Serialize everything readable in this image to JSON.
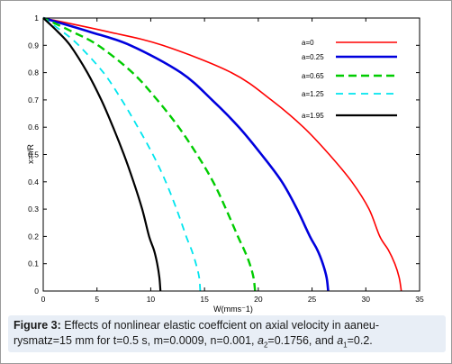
{
  "caption": {
    "label": "Figure 3:",
    "line1": "Effects of nonlinear elastic coeffcient on axial velocity in aaneu-",
    "line2_a": "rysmatz=15 mm for t=0.5 s, m=0.0009, n=0.001, ",
    "a2_sym": "a",
    "a2_sub": "2",
    "a2_val": "=0.1756, and ",
    "a1_sym": "a",
    "a1_sub": "1",
    "a1_val": "=0.2."
  },
  "chart_data": {
    "type": "line",
    "xlabel": "W(mms⁻1)",
    "ylabel": "x=r/R",
    "xlim": [
      0,
      35
    ],
    "ylim": [
      0,
      1
    ],
    "xticks": [
      0,
      5,
      10,
      15,
      20,
      25,
      30,
      35
    ],
    "yticks": [
      0,
      0.1,
      0.2,
      0.3,
      0.4,
      0.5,
      0.6,
      0.7,
      0.8,
      0.9,
      1
    ],
    "legend_position": "top-right",
    "grid": false,
    "series": [
      {
        "name": "a=0",
        "color": "#ff0000",
        "style": "solid",
        "width": 1.6,
        "x_at_center": 33.3,
        "points": [
          [
            33.3,
            0
          ],
          [
            33.1,
            0.05
          ],
          [
            32.7,
            0.1
          ],
          [
            32.1,
            0.15
          ],
          [
            31.3,
            0.2
          ],
          [
            30.3,
            0.3
          ],
          [
            28.7,
            0.4
          ],
          [
            26.6,
            0.5
          ],
          [
            24.2,
            0.6
          ],
          [
            21.2,
            0.7
          ],
          [
            17.5,
            0.8
          ],
          [
            11.1,
            0.9
          ],
          [
            6.0,
            0.95
          ],
          [
            0,
            1
          ]
        ]
      },
      {
        "name": "a=0.25",
        "color": "#0000dd",
        "style": "solid",
        "width": 2.6,
        "x_at_center": 26.5,
        "points": [
          [
            26.5,
            0
          ],
          [
            26.35,
            0.05
          ],
          [
            26.0,
            0.1
          ],
          [
            25.5,
            0.15
          ],
          [
            24.8,
            0.2
          ],
          [
            23.6,
            0.3
          ],
          [
            22.2,
            0.4
          ],
          [
            20.3,
            0.5
          ],
          [
            18.2,
            0.6
          ],
          [
            15.7,
            0.7
          ],
          [
            12.8,
            0.8
          ],
          [
            8.1,
            0.9
          ],
          [
            4.3,
            0.95
          ],
          [
            0,
            1
          ]
        ]
      },
      {
        "name": "a=0.65",
        "color": "#00cc00",
        "style": "dashed",
        "width": 2.4,
        "x_at_center": 19.7,
        "points": [
          [
            19.7,
            0
          ],
          [
            19.55,
            0.05
          ],
          [
            19.2,
            0.1
          ],
          [
            18.7,
            0.15
          ],
          [
            18.1,
            0.2
          ],
          [
            17.0,
            0.3
          ],
          [
            15.8,
            0.4
          ],
          [
            14.3,
            0.5
          ],
          [
            12.6,
            0.6
          ],
          [
            10.6,
            0.7
          ],
          [
            8.3,
            0.8
          ],
          [
            5.1,
            0.9
          ],
          [
            2.7,
            0.95
          ],
          [
            0,
            1
          ]
        ]
      },
      {
        "name": "a=1.25",
        "color": "#00e5ee",
        "style": "dashed",
        "width": 1.8,
        "x_at_center": 14.6,
        "points": [
          [
            14.6,
            0
          ],
          [
            14.5,
            0.05
          ],
          [
            14.2,
            0.1
          ],
          [
            13.8,
            0.15
          ],
          [
            13.3,
            0.2
          ],
          [
            12.4,
            0.3
          ],
          [
            11.4,
            0.4
          ],
          [
            10.2,
            0.5
          ],
          [
            8.8,
            0.6
          ],
          [
            7.3,
            0.7
          ],
          [
            5.6,
            0.8
          ],
          [
            3.3,
            0.9
          ],
          [
            1.8,
            0.95
          ],
          [
            0,
            1
          ]
        ]
      },
      {
        "name": "a=1.95",
        "color": "#000000",
        "style": "solid",
        "width": 2.2,
        "x_at_center": 10.9,
        "points": [
          [
            10.9,
            0
          ],
          [
            10.8,
            0.05
          ],
          [
            10.6,
            0.1
          ],
          [
            10.3,
            0.15
          ],
          [
            9.85,
            0.2
          ],
          [
            9.2,
            0.3
          ],
          [
            8.4,
            0.4
          ],
          [
            7.5,
            0.5
          ],
          [
            6.5,
            0.6
          ],
          [
            5.4,
            0.7
          ],
          [
            4.1,
            0.8
          ],
          [
            2.5,
            0.9
          ],
          [
            1.35,
            0.95
          ],
          [
            0,
            1
          ]
        ]
      }
    ]
  }
}
